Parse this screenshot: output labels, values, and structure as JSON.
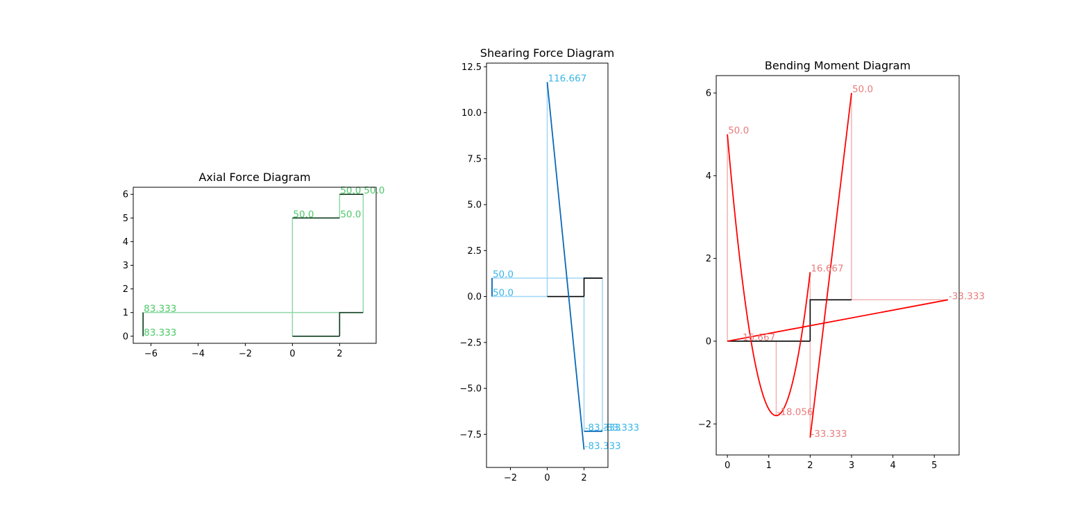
{
  "colors": {
    "axial_main": "#0b3d1e",
    "axial_light": "#8fd9a8",
    "axial_text": "#4cc96a",
    "shear_main": "#0868b8",
    "shear_light": "#9ed7f5",
    "shear_text": "#3ab6e8",
    "moment_main": "#ff0000",
    "moment_light": "#f2b2b2",
    "moment_text": "#e87c7c",
    "frame": "#000000"
  },
  "chart_data": [
    {
      "type": "line",
      "title": "Axial Force Diagram",
      "xlabel": "",
      "ylabel": "",
      "xlim": [
        -6.75,
        3.55
      ],
      "ylim": [
        -0.3,
        6.3
      ],
      "xticks": [
        -6,
        -4,
        -2,
        0,
        2
      ],
      "yticks": [
        0,
        1,
        2,
        3,
        4,
        5,
        6
      ],
      "structure": [
        {
          "name": "member-left",
          "points": [
            [
              -6.333,
              0
            ],
            [
              -6.333,
              1
            ]
          ]
        },
        {
          "name": "member-bottom",
          "points": [
            [
              0,
              0
            ],
            [
              2,
              0
            ]
          ]
        },
        {
          "name": "member-top",
          "points": [
            [
              0,
              5
            ],
            [
              2,
              5
            ]
          ]
        },
        {
          "name": "member-right-col",
          "points": [
            [
              2,
              0
            ],
            [
              2,
              1
            ],
            [
              3,
              1
            ]
          ]
        },
        {
          "name": "member-upper",
          "points": [
            [
              2,
              6
            ],
            [
              3,
              6
            ]
          ]
        }
      ],
      "diagram": [
        {
          "name": "axial-bottom-band",
          "points": [
            [
              -6.333,
              0
            ],
            [
              -6.333,
              1
            ],
            [
              2,
              1
            ],
            [
              2,
              0
            ]
          ]
        },
        {
          "name": "axial-top-band",
          "points": [
            [
              0,
              5
            ],
            [
              0,
              0
            ]
          ]
        },
        {
          "name": "axial-right-band",
          "points": [
            [
              2,
              5
            ],
            [
              2,
              6
            ],
            [
              3,
              6
            ],
            [
              3,
              1
            ]
          ]
        }
      ],
      "labels": [
        {
          "x": -6.333,
          "y": 1,
          "text": "83.333"
        },
        {
          "x": -6.333,
          "y": 0,
          "text": "83.333"
        },
        {
          "x": 0,
          "y": 5,
          "text": "50.0"
        },
        {
          "x": 2,
          "y": 5,
          "text": "50.0"
        },
        {
          "x": 2,
          "y": 6,
          "text": "50.0"
        },
        {
          "x": 3,
          "y": 6,
          "text": "50.0"
        }
      ]
    },
    {
      "type": "line",
      "title": "Shearing Force Diagram",
      "xlabel": "",
      "ylabel": "",
      "xlim": [
        -3.3,
        3.3
      ],
      "ylim": [
        -9.3,
        12.7
      ],
      "xticks": [
        -2,
        0,
        2
      ],
      "yticks": [
        -7.5,
        -5.0,
        -2.5,
        0.0,
        2.5,
        5.0,
        7.5,
        10.0,
        12.5
      ],
      "structure": [
        {
          "name": "member-bottom",
          "points": [
            [
              0,
              0
            ],
            [
              2,
              0
            ]
          ]
        },
        {
          "name": "member-right",
          "points": [
            [
              2,
              0
            ],
            [
              2,
              1
            ],
            [
              3,
              1
            ]
          ]
        }
      ],
      "diagram": [
        {
          "name": "shear-left-box",
          "points": [
            [
              -3,
              0
            ],
            [
              -3,
              1
            ],
            [
              3,
              1
            ],
            [
              3,
              -7.33
            ]
          ]
        },
        {
          "name": "shear-base",
          "points": [
            [
              -3,
              0
            ],
            [
              0,
              0
            ],
            [
              0,
              11.67
            ]
          ]
        },
        {
          "name": "shear-drop",
          "points": [
            [
              2,
              0
            ],
            [
              2,
              -7.33
            ]
          ]
        }
      ],
      "series": [
        {
          "name": "shear-main-line",
          "points": [
            [
              0,
              11.67
            ],
            [
              2,
              -8.33
            ]
          ]
        },
        {
          "name": "shear-left-stub",
          "points": [
            [
              -3,
              0
            ],
            [
              -3,
              1
            ]
          ]
        },
        {
          "name": "shear-right-stub",
          "points": [
            [
              2,
              -7.33
            ],
            [
              3,
              -7.33
            ]
          ]
        }
      ],
      "labels": [
        {
          "x": 0,
          "y": 11.67,
          "text": "116.667"
        },
        {
          "x": -3,
          "y": 1,
          "text": "50.0"
        },
        {
          "x": -3,
          "y": 0,
          "text": "50.0"
        },
        {
          "x": 2,
          "y": -7.33,
          "text": "-83.333"
        },
        {
          "x": 3,
          "y": -7.33,
          "text": "-83.333"
        },
        {
          "x": 2,
          "y": -8.33,
          "text": "-83.333"
        }
      ]
    },
    {
      "type": "line",
      "title": "Bending Moment Diagram",
      "xlabel": "",
      "ylabel": "",
      "xlim": [
        -0.27,
        5.6
      ],
      "ylim": [
        -2.75,
        6.42
      ],
      "xticks": [
        0,
        1,
        2,
        3,
        4,
        5
      ],
      "yticks": [
        -2,
        0,
        2,
        4,
        6
      ],
      "structure": [
        {
          "name": "member-bottom",
          "points": [
            [
              0,
              0
            ],
            [
              2,
              0
            ]
          ]
        },
        {
          "name": "member-right",
          "points": [
            [
              2,
              0
            ],
            [
              2,
              1
            ],
            [
              3,
              1
            ]
          ]
        }
      ],
      "diagram": [
        {
          "name": "moment-drop-a",
          "points": [
            [
              0,
              0
            ],
            [
              0,
              5
            ]
          ]
        },
        {
          "name": "moment-drop-b",
          "points": [
            [
              1.18,
              0
            ],
            [
              1.18,
              -1.8
            ]
          ]
        },
        {
          "name": "moment-drop-c",
          "points": [
            [
              2,
              0
            ],
            [
              2,
              -2.33
            ]
          ]
        },
        {
          "name": "moment-drop-d",
          "points": [
            [
              2,
              1
            ],
            [
              2,
              1.67
            ]
          ]
        },
        {
          "name": "moment-drop-e",
          "points": [
            [
              3,
              1
            ],
            [
              3,
              6
            ]
          ]
        },
        {
          "name": "moment-tail",
          "points": [
            [
              3,
              1
            ],
            [
              5.33,
              1
            ]
          ]
        }
      ],
      "series": [
        {
          "name": "moment-parabola",
          "fn": "parabola",
          "x0": 0,
          "x1": 2,
          "a": 5,
          "vertex": [
            1.18,
            -1.8
          ],
          "end": 1.67
        },
        {
          "name": "moment-rise",
          "points": [
            [
              2,
              -2.33
            ],
            [
              3,
              6
            ]
          ]
        },
        {
          "name": "moment-diagonal",
          "points": [
            [
              0,
              0
            ],
            [
              5.33,
              1
            ]
          ]
        }
      ],
      "labels": [
        {
          "x": 0,
          "y": 5,
          "text": "50.0"
        },
        {
          "x": 3,
          "y": 6,
          "text": "50.0"
        },
        {
          "x": 2,
          "y": 1.67,
          "text": "16.667"
        },
        {
          "x": 5.33,
          "y": 1,
          "text": "-33.333"
        },
        {
          "x": 0.35,
          "y": 0,
          "text": "16.667"
        },
        {
          "x": 1.18,
          "y": -1.8,
          "text": "-18.056"
        },
        {
          "x": 2,
          "y": -2.33,
          "text": "-33.333"
        }
      ]
    }
  ]
}
